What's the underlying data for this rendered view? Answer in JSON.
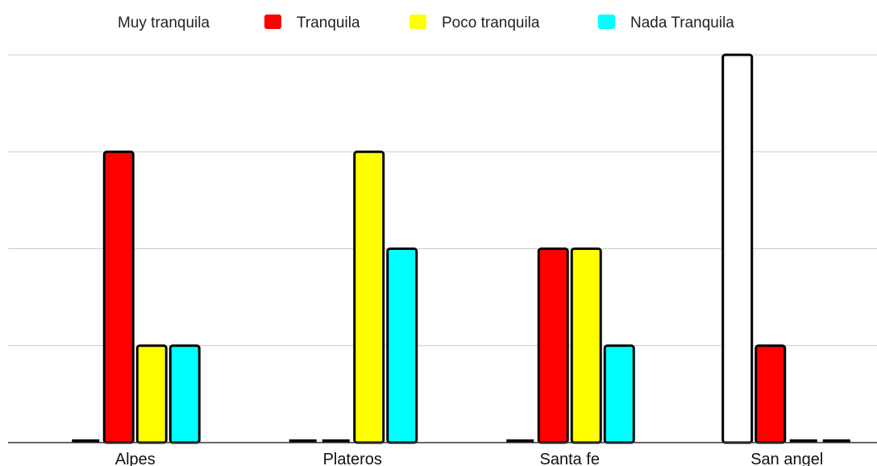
{
  "chart_data": {
    "type": "bar",
    "title": "",
    "xlabel": "",
    "ylabel": "",
    "categories": [
      "Alpes",
      "Plateros",
      "Santa fe",
      "San angel"
    ],
    "series": [
      {
        "name": "Muy tranquila",
        "values": [
          0,
          0,
          0,
          4
        ]
      },
      {
        "name": "Tranquila",
        "values": [
          3,
          0,
          2,
          1
        ]
      },
      {
        "name": "Poco tranquila",
        "values": [
          1,
          3,
          2,
          0
        ]
      },
      {
        "name": "Nada Tranquila",
        "values": [
          1,
          2,
          1,
          0
        ]
      }
    ],
    "ylim": [
      0,
      4
    ],
    "grid": true,
    "legend_position": "top",
    "colors": [
      "#ffffff",
      "#ff0000",
      "#ffff00",
      "#00ffff"
    ],
    "stroke": "#000000"
  }
}
